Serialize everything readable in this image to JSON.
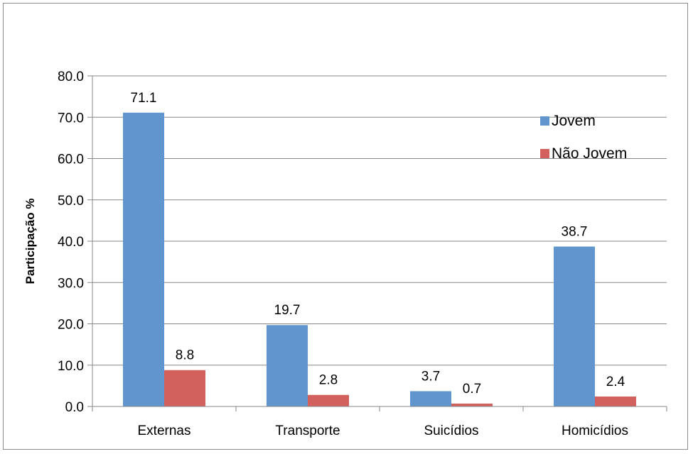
{
  "chart_data": {
    "type": "bar",
    "title": "",
    "xlabel": "",
    "ylabel": "Participação %",
    "ylim": [
      0,
      80
    ],
    "yticks": [
      "0.0",
      "10.0",
      "20.0",
      "30.0",
      "40.0",
      "50.0",
      "60.0",
      "70.0",
      "80.0"
    ],
    "categories": [
      "Externas",
      "Transporte",
      "Suicídios",
      "Homicídios"
    ],
    "series": [
      {
        "name": "Jovem",
        "values": [
          71.1,
          19.7,
          3.7,
          38.7
        ],
        "labels": [
          "71.1",
          "19.7",
          "3.7",
          "38.7"
        ],
        "color": "#6096cd"
      },
      {
        "name": "Não Jovem",
        "values": [
          8.8,
          2.8,
          0.7,
          2.4
        ],
        "labels": [
          "8.8",
          "2.8",
          "0.7",
          "2.4"
        ],
        "color": "#d2605c"
      }
    ],
    "grid": true,
    "legend_position": "top-right"
  }
}
